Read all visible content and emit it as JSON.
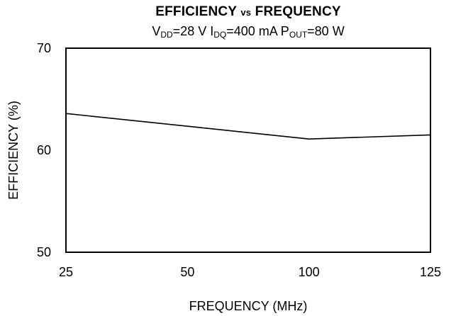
{
  "chart_data": {
    "type": "line",
    "title": {
      "part1": "EFFICIENCY",
      "vs": "vs",
      "part2": "FREQUENCY"
    },
    "subtitle": {
      "vdd_prefix": "V",
      "vdd_sub": "DD",
      "vdd_value": "=28 V ",
      "idq_prefix": "I",
      "idq_sub": "DQ",
      "idq_value": "=400 mA ",
      "pout_prefix": "P",
      "pout_sub": "OUT",
      "pout_value": "=80 W"
    },
    "xlabel": "FREQUENCY (MHz)",
    "ylabel": "EFFICIENCY (%)",
    "x_ticks": [
      "25",
      "50",
      "100",
      "125"
    ],
    "y_ticks": [
      "70",
      "60",
      "50"
    ],
    "ylim": [
      50,
      70
    ],
    "grid": false,
    "series": [
      {
        "values": [
          {
            "x": 25,
            "y": 63.6
          },
          {
            "x": 100,
            "y": 61.1
          },
          {
            "x": 125,
            "y": 61.5
          }
        ]
      }
    ]
  }
}
